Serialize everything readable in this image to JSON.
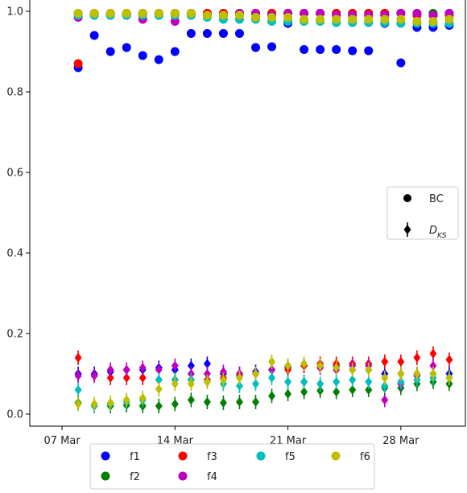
{
  "chart_data": {
    "type": "scatter",
    "title": "",
    "xlabel": "",
    "ylabel": "",
    "x": [
      "2020-03-08",
      "2020-03-09",
      "2020-03-10",
      "2020-03-11",
      "2020-03-12",
      "2020-03-13",
      "2020-03-14",
      "2020-03-15",
      "2020-03-16",
      "2020-03-17",
      "2020-03-18",
      "2020-03-19",
      "2020-03-20",
      "2020-03-21",
      "2020-03-22",
      "2020-03-23",
      "2020-03-24",
      "2020-03-25",
      "2020-03-26",
      "2020-03-27",
      "2020-03-28",
      "2020-03-29",
      "2020-03-30",
      "2020-03-31"
    ],
    "xlim": [
      "2020-03-05",
      "2020-04-01"
    ],
    "ylim": [
      -0.03,
      1.03
    ],
    "x_ticks": [
      {
        "date": "2020-03-07",
        "label": "07 Mar"
      },
      {
        "date": "2020-03-14",
        "label": "14 Mar"
      },
      {
        "date": "2020-03-21",
        "label": "21 Mar"
      },
      {
        "date": "2020-03-28",
        "label": "28 Mar"
      }
    ],
    "y_ticks": [
      {
        "value": 0.0,
        "label": "0.0"
      },
      {
        "value": 0.2,
        "label": "0.2"
      },
      {
        "value": 0.4,
        "label": "0.4"
      },
      {
        "value": 0.6,
        "label": "0.6"
      },
      {
        "value": 0.8,
        "label": "0.8"
      },
      {
        "value": 1.0,
        "label": "1.0"
      }
    ],
    "marker_legend": {
      "position": "right",
      "entries": [
        {
          "marker": "circle",
          "label": "BC"
        },
        {
          "marker": "diamond-errorbar",
          "label": "D_KS"
        }
      ]
    },
    "series_legend": {
      "position": "below",
      "entries": [
        "f1",
        "f3",
        "f5",
        "f6",
        "f2",
        "f4"
      ]
    },
    "series": [
      {
        "name": "f1",
        "color": "#0000ff",
        "bc": [
          0.86,
          0.94,
          0.9,
          0.91,
          0.89,
          0.88,
          0.9,
          0.945,
          0.945,
          0.945,
          0.945,
          0.91,
          0.912,
          0.97,
          0.905,
          0.905,
          0.905,
          0.902,
          0.902,
          0.97,
          0.872,
          0.96,
          0.96,
          0.965
        ],
        "dks": [
          0.1,
          0.1,
          0.105,
          0.11,
          0.11,
          0.115,
          0.11,
          0.12,
          0.125,
          0.1,
          0.1,
          0.105,
          0.11,
          0.115,
          0.12,
          0.12,
          0.12,
          0.11,
          0.11,
          0.1,
          0.1,
          0.1,
          0.1,
          0.1
        ]
      },
      {
        "name": "f2",
        "color": "#008000",
        "bc": [
          0.995,
          0.995,
          0.995,
          0.995,
          0.995,
          0.995,
          0.995,
          0.995,
          0.995,
          0.995,
          0.995,
          0.995,
          0.995,
          0.995,
          0.995,
          0.995,
          0.995,
          0.995,
          0.995,
          0.995,
          0.995,
          0.995,
          0.995,
          0.995
        ],
        "dks": [
          0.028,
          0.02,
          0.02,
          0.022,
          0.02,
          0.02,
          0.025,
          0.035,
          0.03,
          0.028,
          0.03,
          0.03,
          0.045,
          0.05,
          0.055,
          0.058,
          0.055,
          0.06,
          0.06,
          0.065,
          0.065,
          0.075,
          0.08,
          0.075
        ]
      },
      {
        "name": "f3",
        "color": "#ff0000",
        "bc": [
          0.87,
          0.995,
          0.995,
          0.995,
          0.995,
          0.995,
          0.995,
          0.995,
          0.995,
          0.995,
          0.995,
          0.995,
          0.995,
          0.995,
          0.995,
          0.995,
          0.995,
          0.995,
          0.995,
          0.995,
          0.995,
          0.99,
          0.99,
          0.99
        ],
        "dks": [
          0.14,
          0.095,
          0.09,
          0.09,
          0.09,
          0.085,
          0.085,
          0.085,
          0.085,
          0.09,
          0.095,
          0.1,
          0.11,
          0.11,
          0.12,
          0.125,
          0.125,
          0.125,
          0.125,
          0.13,
          0.13,
          0.14,
          0.15,
          0.135
        ]
      },
      {
        "name": "f4",
        "color": "#bf00bf",
        "bc": [
          0.985,
          0.99,
          0.99,
          0.99,
          0.98,
          0.99,
          0.975,
          0.99,
          0.99,
          0.99,
          0.995,
          0.995,
          0.99,
          0.995,
          0.995,
          0.995,
          0.99,
          0.99,
          0.99,
          0.99,
          0.995,
          0.995,
          0.99,
          0.995
        ],
        "dks": [
          0.095,
          0.095,
          0.11,
          0.11,
          0.115,
          0.11,
          0.12,
          0.1,
          0.1,
          0.105,
          0.1,
          0.1,
          0.11,
          0.12,
          0.08,
          0.115,
          0.11,
          0.12,
          0.12,
          0.035,
          0.075,
          0.095,
          0.12,
          0.09
        ]
      },
      {
        "name": "f5",
        "color": "#00bfbf",
        "bc": [
          0.99,
          0.99,
          0.99,
          0.99,
          0.99,
          0.99,
          0.99,
          0.99,
          0.985,
          0.98,
          0.98,
          0.98,
          0.975,
          0.975,
          0.975,
          0.975,
          0.972,
          0.972,
          0.972,
          0.972,
          0.97,
          0.97,
          0.97,
          0.97
        ],
        "dks": [
          0.06,
          0.02,
          0.025,
          0.03,
          0.035,
          0.085,
          0.085,
          0.085,
          0.08,
          0.075,
          0.07,
          0.075,
          0.09,
          0.08,
          0.08,
          0.075,
          0.08,
          0.085,
          0.08,
          0.07,
          0.08,
          0.085,
          0.09,
          0.09
        ]
      },
      {
        "name": "f6",
        "color": "#bfbf00",
        "bc": [
          0.995,
          0.995,
          0.995,
          0.995,
          0.995,
          0.995,
          0.995,
          0.995,
          0.99,
          0.99,
          0.99,
          0.985,
          0.985,
          0.985,
          0.98,
          0.98,
          0.98,
          0.98,
          0.98,
          0.98,
          0.98,
          0.975,
          0.975,
          0.98
        ],
        "dks": [
          0.025,
          0.025,
          0.028,
          0.035,
          0.04,
          0.062,
          0.075,
          0.075,
          0.08,
          0.085,
          0.09,
          0.1,
          0.13,
          0.12,
          0.125,
          0.12,
          0.115,
          0.11,
          0.11,
          0.09,
          0.1,
          0.1,
          0.1,
          0.09
        ]
      }
    ]
  }
}
